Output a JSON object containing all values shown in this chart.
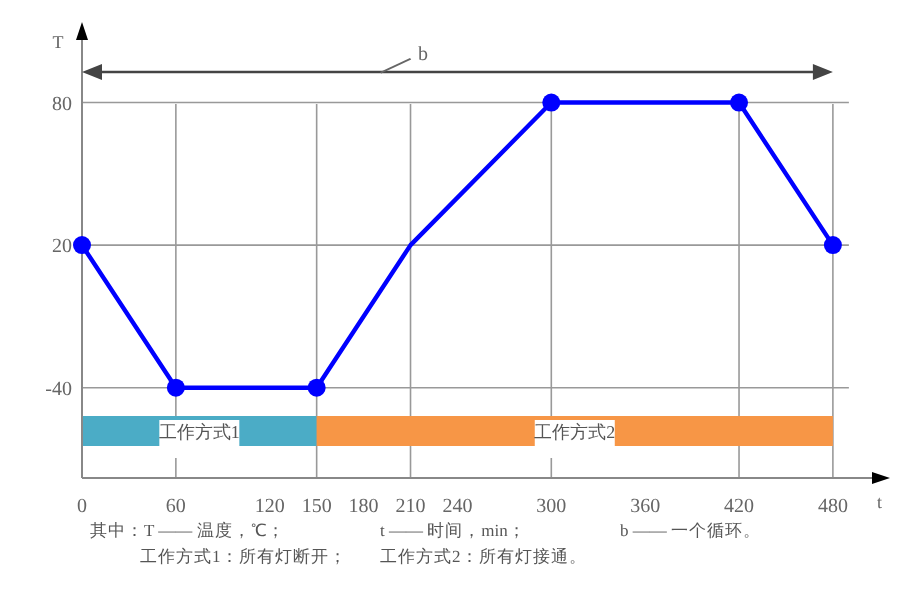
{
  "chart_data": {
    "type": "line",
    "xlabel": "t",
    "ylabel": "T",
    "x": [
      0,
      60,
      150,
      210,
      300,
      420,
      480
    ],
    "series": [
      {
        "type": "line",
        "color": "#0000ff",
        "values": [
          20,
          -40,
          -40,
          20,
          80,
          80,
          20
        ],
        "marker": "none"
      },
      {
        "type": "scatter",
        "color": "#0000ff",
        "x": [
          0,
          60,
          150,
          300,
          420,
          480
        ],
        "values": [
          20,
          -40,
          -40,
          80,
          80,
          20
        ],
        "marker": "circle"
      }
    ],
    "xlim": [
      0,
      505
    ],
    "xticks": [
      0,
      60,
      120,
      150,
      180,
      210,
      240,
      300,
      360,
      420,
      480
    ],
    "ylim": [
      -78,
      108
    ],
    "yticks": [
      -40,
      20,
      80
    ],
    "grid": "y",
    "ref_lines": [
      {
        "axis": "x",
        "value": 60
      },
      {
        "axis": "x",
        "value": 150
      },
      {
        "axis": "x",
        "value": 210
      },
      {
        "axis": "x",
        "value": 300
      },
      {
        "axis": "x",
        "value": 420
      },
      {
        "axis": "x",
        "value": 480
      }
    ],
    "bands": [
      {
        "axis": "x",
        "from": 0,
        "to": 150,
        "label": "工作方式1",
        "color": "#4bacc6"
      },
      {
        "axis": "x",
        "from": 150,
        "to": 480,
        "label": "工作方式2",
        "color": "#f79646"
      }
    ],
    "annotations": [
      "b",
      "其中：T —— 温度，℃；",
      "t —— 时间，min；",
      "b —— 一个循环。",
      "工作方式1：所有灯断开；",
      "工作方式2：所有灯接通。"
    ],
    "legend": false
  }
}
